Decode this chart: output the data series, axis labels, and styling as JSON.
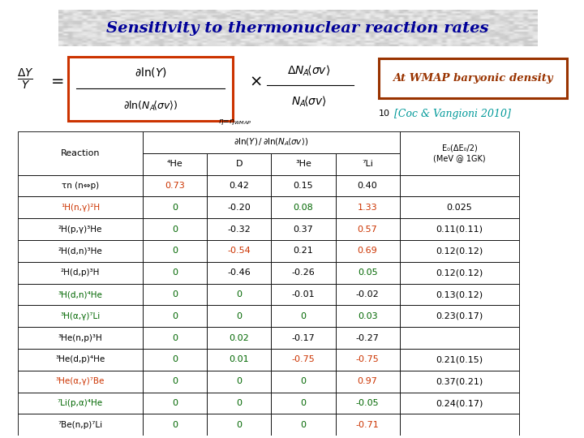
{
  "title": "Sensitivity to thermonuclear reaction rates",
  "subtitle_ref": "[Coc & Vangioni 2010]",
  "subtitle_num": "10",
  "wmap_text": "At WMAP baryonic density",
  "rows": [
    {
      "reaction": "τn (n⇔p)",
      "reaction_color": "black",
      "values": [
        "0.73",
        "0.42",
        "0.15",
        "0.40",
        ""
      ],
      "colors": [
        "#cc3300",
        "black",
        "black",
        "black",
        "black"
      ]
    },
    {
      "reaction": "¹H(n,γ)²H",
      "reaction_color": "#cc3300",
      "values": [
        "0",
        "-0.20",
        "0.08",
        "1.33",
        "0.025"
      ],
      "colors": [
        "#006600",
        "black",
        "#006600",
        "#cc3300",
        "black"
      ]
    },
    {
      "reaction": "²H(p,γ)³He",
      "reaction_color": "black",
      "values": [
        "0",
        "-0.32",
        "0.37",
        "0.57",
        "0.11(0.11)"
      ],
      "colors": [
        "#006600",
        "black",
        "black",
        "#cc3300",
        "black"
      ]
    },
    {
      "reaction": "²H(d,n)³He",
      "reaction_color": "black",
      "values": [
        "0",
        "-0.54",
        "0.21",
        "0.69",
        "0.12(0.12)"
      ],
      "colors": [
        "#006600",
        "#cc3300",
        "black",
        "#cc3300",
        "black"
      ]
    },
    {
      "reaction": "²H(d,p)³H",
      "reaction_color": "black",
      "values": [
        "0",
        "-0.46",
        "-0.26",
        "0.05",
        "0.12(0.12)"
      ],
      "colors": [
        "#006600",
        "black",
        "black",
        "#006600",
        "black"
      ]
    },
    {
      "reaction": "³H(d,n)⁴He",
      "reaction_color": "#006600",
      "values": [
        "0",
        "0",
        "-0.01",
        "-0.02",
        "0.13(0.12)"
      ],
      "colors": [
        "#006600",
        "#006600",
        "black",
        "black",
        "black"
      ]
    },
    {
      "reaction": "³H(α,γ)⁷Li",
      "reaction_color": "#006600",
      "values": [
        "0",
        "0",
        "0",
        "0.03",
        "0.23(0.17)"
      ],
      "colors": [
        "#006600",
        "#006600",
        "#006600",
        "#006600",
        "black"
      ]
    },
    {
      "reaction": "³He(n,p)³H",
      "reaction_color": "black",
      "values": [
        "0",
        "0.02",
        "-0.17",
        "-0.27",
        ""
      ],
      "colors": [
        "#006600",
        "#006600",
        "black",
        "black",
        "black"
      ]
    },
    {
      "reaction": "³He(d,p)⁴He",
      "reaction_color": "black",
      "values": [
        "0",
        "0.01",
        "-0.75",
        "-0.75",
        "0.21(0.15)"
      ],
      "colors": [
        "#006600",
        "#006600",
        "#cc3300",
        "#cc3300",
        "black"
      ]
    },
    {
      "reaction": "³He(α,γ)⁷Be",
      "reaction_color": "#cc3300",
      "values": [
        "0",
        "0",
        "0",
        "0.97",
        "0.37(0.21)"
      ],
      "colors": [
        "#006600",
        "#006600",
        "#006600",
        "#cc3300",
        "black"
      ]
    },
    {
      "reaction": "⁷Li(p,α)⁴He",
      "reaction_color": "#006600",
      "values": [
        "0",
        "0",
        "0",
        "-0.05",
        "0.24(0.17)"
      ],
      "colors": [
        "#006600",
        "#006600",
        "#006600",
        "#006600",
        "black"
      ]
    },
    {
      "reaction": "⁷Be(n,p)⁷Li",
      "reaction_color": "black",
      "values": [
        "0",
        "0",
        "0",
        "-0.71",
        ""
      ],
      "colors": [
        "#006600",
        "#006600",
        "#006600",
        "#cc3300",
        "black"
      ]
    }
  ],
  "title_color": "#000099",
  "title_border": "#000099",
  "wmap_border": "#993300",
  "wmap_text_color": "#993300",
  "ref_color": "#009999"
}
